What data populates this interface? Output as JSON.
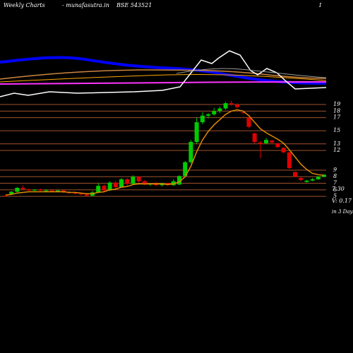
{
  "chart_data": {
    "type": "candlestick",
    "title": "Weekly Charts",
    "source": "- munafasutra.in",
    "symbol": "BSE 543521",
    "corner_mark": "I",
    "last_price": "7.30",
    "volume_note": "V: 0.17 X",
    "period_note": "in 3 Days",
    "ylim": [
      3.72,
      20.94
    ],
    "yticks": [
      19,
      18,
      17,
      15,
      13,
      12,
      9,
      8,
      7,
      6,
      5
    ],
    "grid_color": "#a0522d",
    "up_color": "#00cc00",
    "down_color": "#e00000",
    "open": [
      5.1,
      5.3,
      5.7,
      6.3,
      6.0,
      5.9,
      6.0,
      5.9,
      5.9,
      5.7,
      5.9,
      5.6,
      5.5,
      5.4,
      5.3,
      5.1,
      5.6,
      6.6,
      5.9,
      7.1,
      6.4,
      7.6,
      6.9,
      8.0,
      7.3,
      6.8,
      6.9,
      6.7,
      7.0,
      6.7,
      6.8,
      8.1,
      10.2,
      13.3,
      16.3,
      17.3,
      17.5,
      18.0,
      18.4,
      19.2,
      19.0,
      17.8,
      17.0,
      14.6,
      13.2,
      13.1,
      13.5,
      13.1,
      12.4,
      11.7,
      8.7,
      7.8,
      7.2,
      7.4,
      7.6,
      8.0
    ],
    "high": [
      5.2,
      5.8,
      6.4,
      6.7,
      6.2,
      6.1,
      6.2,
      6.1,
      6.1,
      6.0,
      6.0,
      5.8,
      5.7,
      5.6,
      5.5,
      5.8,
      7.0,
      6.8,
      7.3,
      7.4,
      7.8,
      7.8,
      8.2,
      8.0,
      7.5,
      7.0,
      7.2,
      7.1,
      7.1,
      7.6,
      8.2,
      10.4,
      13.6,
      17.0,
      17.8,
      17.7,
      18.5,
      18.7,
      19.4,
      19.6,
      19.2,
      17.9,
      17.1,
      14.7,
      13.4,
      13.9,
      13.6,
      13.2,
      12.5,
      11.8,
      8.8,
      7.9,
      7.5,
      7.8,
      8.1,
      8.4
    ],
    "low": [
      5.0,
      5.2,
      5.6,
      6.0,
      5.8,
      5.8,
      5.8,
      5.8,
      5.6,
      5.6,
      5.5,
      5.4,
      5.3,
      5.2,
      5.0,
      5.0,
      5.5,
      5.7,
      5.8,
      6.2,
      6.3,
      6.6,
      6.8,
      7.1,
      6.7,
      6.6,
      6.6,
      6.5,
      6.6,
      6.6,
      6.7,
      8.0,
      10.0,
      13.0,
      16.0,
      16.9,
      17.3,
      17.7,
      18.2,
      18.8,
      18.4,
      17.6,
      15.4,
      13.1,
      10.8,
      13.0,
      13.0,
      12.4,
      11.6,
      9.2,
      7.9,
      7.3,
      7.1,
      7.3,
      7.5,
      7.9
    ],
    "close": [
      5.0,
      5.7,
      6.3,
      6.1,
      5.9,
      6.0,
      5.9,
      5.9,
      5.7,
      5.9,
      5.6,
      5.5,
      5.4,
      5.3,
      5.1,
      5.6,
      6.6,
      5.9,
      7.1,
      6.4,
      7.6,
      6.9,
      8.0,
      7.3,
      6.8,
      6.9,
      6.7,
      7.0,
      6.7,
      7.3,
      8.1,
      10.2,
      13.3,
      16.3,
      17.3,
      17.5,
      18.0,
      18.4,
      19.2,
      19.0,
      18.6,
      17.7,
      15.6,
      13.3,
      13.0,
      13.6,
      13.2,
      12.5,
      11.7,
      9.3,
      8.0,
      7.5,
      7.4,
      7.6,
      8.0,
      8.3
    ],
    "ema": {
      "color": "#e08a00",
      "values": [
        5.2,
        5.3,
        5.5,
        5.6,
        5.7,
        5.7,
        5.7,
        5.7,
        5.7,
        5.7,
        5.7,
        5.6,
        5.6,
        5.5,
        5.4,
        5.4,
        5.6,
        5.7,
        6.0,
        6.1,
        6.4,
        6.5,
        6.8,
        6.9,
        6.9,
        6.9,
        6.9,
        6.9,
        6.8,
        6.9,
        7.2,
        8.0,
        9.6,
        11.8,
        13.6,
        14.9,
        15.9,
        16.7,
        17.5,
        18.0,
        18.2,
        18.0,
        17.3,
        16.3,
        15.3,
        14.7,
        14.2,
        13.7,
        13.1,
        12.1,
        11.0,
        9.9,
        9.1,
        8.5,
        8.3,
        8.2
      ]
    }
  }
}
